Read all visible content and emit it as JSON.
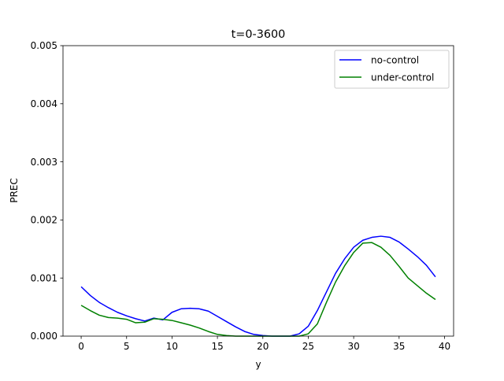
{
  "chart_data": {
    "type": "line",
    "title": "t=0-3600",
    "xlabel": "y",
    "ylabel": "PREC",
    "xlim": [
      -2,
      41
    ],
    "ylim": [
      0,
      0.005
    ],
    "x_ticks": [
      0,
      5,
      10,
      15,
      20,
      25,
      30,
      35,
      40
    ],
    "x_tick_labels": [
      "0",
      "5",
      "10",
      "15",
      "20",
      "25",
      "30",
      "35",
      "40"
    ],
    "y_ticks": [
      0,
      0.001,
      0.002,
      0.003,
      0.004,
      0.005
    ],
    "y_tick_labels": [
      "0.000",
      "0.001",
      "0.002",
      "0.003",
      "0.004",
      "0.005"
    ],
    "grid": false,
    "legend_position": "upper right",
    "x": [
      0,
      1,
      2,
      3,
      4,
      5,
      6,
      7,
      8,
      9,
      10,
      11,
      12,
      13,
      14,
      15,
      16,
      17,
      18,
      19,
      20,
      21,
      22,
      23,
      24,
      25,
      26,
      27,
      28,
      29,
      30,
      31,
      32,
      33,
      34,
      35,
      36,
      37,
      38,
      39
    ],
    "series": [
      {
        "name": "no-control",
        "color": "#0000ff",
        "values": [
          0.00085,
          0.0007,
          0.00058,
          0.00049,
          0.00041,
          0.00035,
          0.0003,
          0.00026,
          0.00031,
          0.00028,
          0.00041,
          0.00047,
          0.00048,
          0.00047,
          0.00043,
          0.00034,
          0.00025,
          0.00016,
          8e-05,
          3e-05,
          1e-05,
          0.0,
          0.0,
          0.0,
          4e-05,
          0.00017,
          0.00044,
          0.00076,
          0.00108,
          0.00133,
          0.00153,
          0.00165,
          0.0017,
          0.00172,
          0.0017,
          0.00162,
          0.0015,
          0.00137,
          0.00122,
          0.00102
        ]
      },
      {
        "name": "under-control",
        "color": "#008000",
        "values": [
          0.00053,
          0.00044,
          0.00036,
          0.00032,
          0.00031,
          0.00029,
          0.00023,
          0.00024,
          0.0003,
          0.00029,
          0.00027,
          0.00023,
          0.00019,
          0.00014,
          8e-05,
          3e-05,
          1e-05,
          0.0,
          0.0,
          0.0,
          0.0,
          0.0,
          0.0,
          0.0,
          0.0,
          4e-05,
          0.00021,
          0.00058,
          0.00093,
          0.00121,
          0.00144,
          0.0016,
          0.00161,
          0.00153,
          0.00139,
          0.0012,
          0.001,
          0.00087,
          0.00074,
          0.00063
        ]
      }
    ]
  }
}
